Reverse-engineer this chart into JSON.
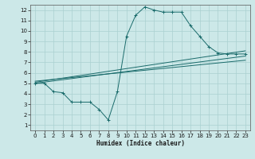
{
  "xlabel": "Humidex (Indice chaleur)",
  "background_color": "#cce8e8",
  "grid_color": "#aad0d0",
  "line_color": "#1a6b6b",
  "xlim": [
    -0.5,
    23.5
  ],
  "ylim": [
    0.5,
    12.5
  ],
  "xticks": [
    0,
    1,
    2,
    3,
    4,
    5,
    6,
    7,
    8,
    9,
    10,
    11,
    12,
    13,
    14,
    15,
    16,
    17,
    18,
    19,
    20,
    21,
    22,
    23
  ],
  "yticks": [
    1,
    2,
    3,
    4,
    5,
    6,
    7,
    8,
    9,
    10,
    11,
    12
  ],
  "line1_x": [
    0,
    1,
    2,
    3,
    4,
    5,
    6,
    7,
    8,
    9,
    10,
    11,
    12,
    13,
    14,
    15,
    16,
    17,
    18,
    19,
    20,
    21,
    22,
    23
  ],
  "line1_y": [
    5.0,
    5.0,
    4.2,
    4.1,
    3.2,
    3.2,
    3.2,
    2.5,
    1.5,
    4.2,
    9.5,
    11.5,
    12.3,
    12.0,
    11.8,
    11.8,
    11.8,
    10.5,
    9.5,
    8.5,
    7.9,
    7.8,
    7.8,
    7.8
  ],
  "line2_x": [
    0,
    23
  ],
  "line2_y": [
    5.1,
    8.1
  ],
  "line3_x": [
    0,
    23
  ],
  "line3_y": [
    5.0,
    7.6
  ],
  "line4_x": [
    0,
    23
  ],
  "line4_y": [
    5.2,
    7.2
  ]
}
